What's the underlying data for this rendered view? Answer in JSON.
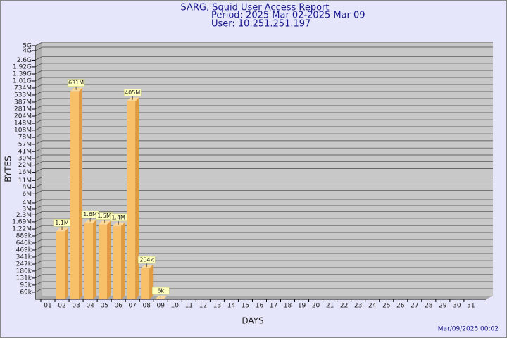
{
  "chart_data": {
    "type": "bar",
    "title": "SARG, Squid User Access Report",
    "subtitle": "Period: 2025 Mar 02-2025 Mar 09",
    "user": "User: 10.251.251.197",
    "x_label": "DAYS",
    "y_label": "BYTES",
    "footer": "Mar/09/2025 00:02",
    "categories": [
      "01",
      "02",
      "03",
      "04",
      "05",
      "06",
      "07",
      "08",
      "09",
      "10",
      "11",
      "12",
      "13",
      "14",
      "15",
      "16",
      "17",
      "18",
      "19",
      "20",
      "21",
      "22",
      "23",
      "24",
      "25",
      "26",
      "27",
      "28",
      "29",
      "30",
      "31"
    ],
    "values": [
      null,
      1100000,
      631000000,
      1600000,
      1500000,
      1400000,
      405000000,
      204000,
      6000,
      null,
      null,
      null,
      null,
      null,
      null,
      null,
      null,
      null,
      null,
      null,
      null,
      null,
      null,
      null,
      null,
      null,
      null,
      null,
      null,
      null,
      null
    ],
    "value_labels": [
      null,
      "1.1M",
      "631M",
      "1.6M",
      "1.5M",
      "1.4M",
      "405M",
      "204k",
      "6k",
      null,
      null,
      null,
      null,
      null,
      null,
      null,
      null,
      null,
      null,
      null,
      null,
      null,
      null,
      null,
      null,
      null,
      null,
      null,
      null,
      null,
      null
    ],
    "color": "#f8c068",
    "log_scale": true,
    "grid": true,
    "ylim": [
      50000,
      5000000000
    ],
    "yticks": [
      {
        "value": 69000,
        "label": "69k"
      },
      {
        "value": 95000,
        "label": "95k"
      },
      {
        "value": 131000,
        "label": "131k"
      },
      {
        "value": 180000,
        "label": "180k"
      },
      {
        "value": 247000,
        "label": "247k"
      },
      {
        "value": 341000,
        "label": "341k"
      },
      {
        "value": 469000,
        "label": "469k"
      },
      {
        "value": 646000,
        "label": "646k"
      },
      {
        "value": 889000,
        "label": "889k"
      },
      {
        "value": 1220000,
        "label": "1.22M"
      },
      {
        "value": 1690000,
        "label": "1.69M"
      },
      {
        "value": 2300000,
        "label": "2.3M"
      },
      {
        "value": 3000000,
        "label": "3M"
      },
      {
        "value": 4000000,
        "label": "4M"
      },
      {
        "value": 6000000,
        "label": "6M"
      },
      {
        "value": 8000000,
        "label": "8M"
      },
      {
        "value": 11000000,
        "label": "11M"
      },
      {
        "value": 16000000,
        "label": "16M"
      },
      {
        "value": 22000000,
        "label": "22M"
      },
      {
        "value": 30000000,
        "label": "30M"
      },
      {
        "value": 41000000,
        "label": "41M"
      },
      {
        "value": 57000000,
        "label": "57M"
      },
      {
        "value": 78000000,
        "label": "78M"
      },
      {
        "value": 108000000,
        "label": "108M"
      },
      {
        "value": 148000000,
        "label": "148M"
      },
      {
        "value": 204000000,
        "label": "204M"
      },
      {
        "value": 281000000,
        "label": "281M"
      },
      {
        "value": 387000000,
        "label": "387M"
      },
      {
        "value": 533000000,
        "label": "533M"
      },
      {
        "value": 734000000,
        "label": "734M"
      },
      {
        "value": 1010000000,
        "label": "1.01G"
      },
      {
        "value": 1390000000,
        "label": "1.39G"
      },
      {
        "value": 1920000000,
        "label": "1.92G"
      },
      {
        "value": 2600000000,
        "label": "2.6G"
      },
      {
        "value": 4000000000,
        "label": "4G"
      },
      {
        "value": 5000000000,
        "label": "5G"
      }
    ]
  }
}
